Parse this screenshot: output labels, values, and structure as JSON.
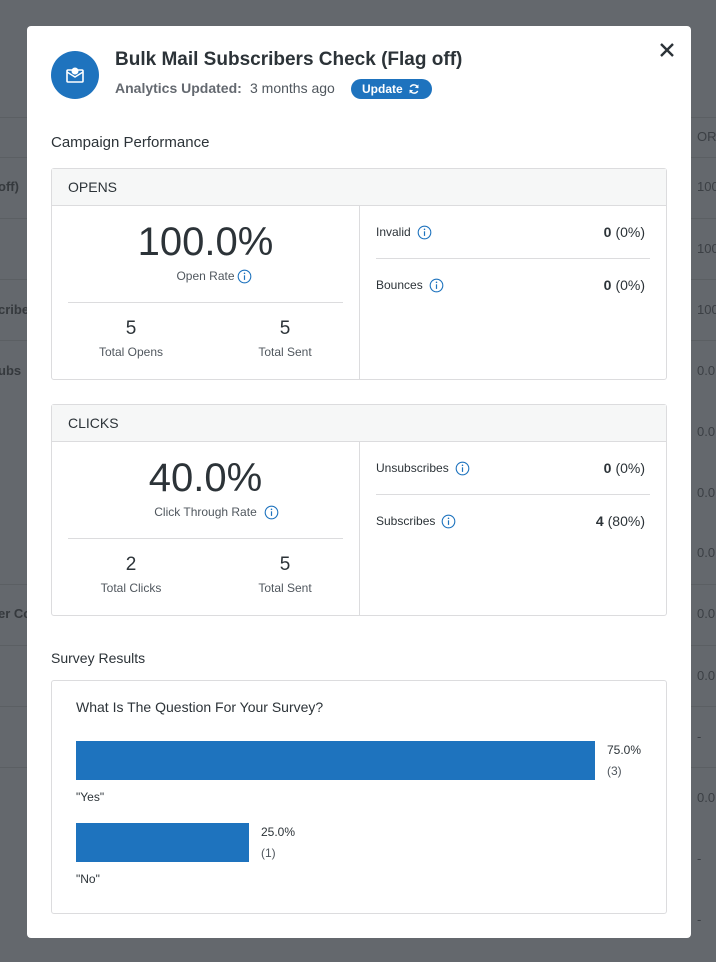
{
  "background": {
    "left_column": [
      "off)",
      "cribe",
      "ubs",
      "er Co"
    ],
    "right_column": [
      "OR",
      "100",
      "100",
      "100",
      "0.0",
      "0.0",
      "0.0",
      "0.0",
      "0.0",
      "0.0",
      "-",
      "0.0",
      "-",
      "-"
    ]
  },
  "modal": {
    "title": "Bulk Mail Subscribers Check (Flag off)",
    "analytics_label": "Analytics Updated:",
    "analytics_value": "3 months ago",
    "update_button": "Update",
    "section_title": "Campaign Performance",
    "panels": [
      {
        "header": "OPENS",
        "rate": "100.0%",
        "rate_label": "Open Rate",
        "stats": [
          {
            "value": "5",
            "label": "Total Opens"
          },
          {
            "value": "5",
            "label": "Total Sent"
          }
        ],
        "metrics": [
          {
            "label": "Invalid",
            "count": "0",
            "share": "(0%)"
          },
          {
            "label": "Bounces",
            "count": "0",
            "share": "(0%)"
          }
        ]
      },
      {
        "header": "CLICKS",
        "rate": "40.0%",
        "rate_label": "Click Through Rate",
        "stats": [
          {
            "value": "2",
            "label": "Total Clicks"
          },
          {
            "value": "5",
            "label": "Total Sent"
          }
        ],
        "metrics": [
          {
            "label": "Unsubscribes",
            "count": "0",
            "share": "(0%)"
          },
          {
            "label": "Subscribes",
            "count": "4",
            "share": "(80%)"
          }
        ]
      }
    ],
    "survey": {
      "title": "Survey Results",
      "question": "What Is The Question For Your Survey?",
      "options": [
        {
          "label": "\"Yes\"",
          "percent": 75,
          "percent_label": "75.0%",
          "count_label": "(3)"
        },
        {
          "label": "\"No\"",
          "percent": 25,
          "percent_label": "25.0%",
          "count_label": "(1)"
        }
      ]
    }
  }
}
